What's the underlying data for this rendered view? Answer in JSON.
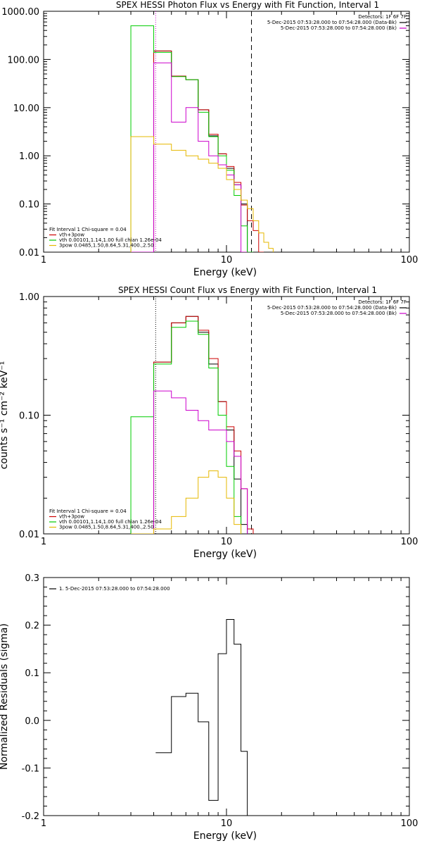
{
  "chart_data": [
    {
      "type": "line",
      "title": "SPEX HESSI Photon Flux vs Energy with Fit Function, Interval 1",
      "xlabel": "Energy (keV)",
      "ylabel": "",
      "xscale": "log",
      "yscale": "log",
      "xlim": [
        1,
        100
      ],
      "ylim": [
        0.01,
        1000
      ],
      "xticks": [
        1,
        10,
        100
      ],
      "xtick_labels": [
        "1",
        "10",
        "100"
      ],
      "yticks": [
        0.01,
        0.1,
        1,
        10,
        100,
        1000
      ],
      "ytick_labels": [
        "0.01",
        "0.10",
        "1.00",
        "10.00",
        "100.00",
        "1000.00"
      ],
      "edges": [
        3,
        4,
        5,
        6,
        7,
        8,
        9,
        10,
        11,
        12,
        13,
        14,
        15,
        16,
        17,
        18
      ],
      "vlines": [
        {
          "x": 4.1,
          "style": "dotted",
          "color": "#cc00cc"
        },
        {
          "x": 13.7,
          "style": "dashed",
          "color": "#000000"
        }
      ],
      "header_right": [
        "Detectors: 1F 6F 7F",
        "5-Dec-2015 07:53:28.000 to 07:54:28.000 (Data-Bk)",
        "5-Dec-2015 07:53:28.000 to 07:54:28.000 (Bk)"
      ],
      "header_right_colors": [
        "",
        "#000000",
        "#cc00cc"
      ],
      "legend": [
        {
          "text": "Fit Interval 1    Chi-square = 0.04",
          "color": ""
        },
        {
          "text": "vth+3pow",
          "color": "#cc0000"
        },
        {
          "text": "vth 0.00101,1.14,1.00   full chian 1.26e-04",
          "color": "#00cc00"
        },
        {
          "text": "3pow 0.0485,1.50,8.64,5.31,400.,2.50",
          "color": "#e6b800"
        }
      ],
      "series": [
        {
          "color": "#000000",
          "values": [
            0.0001,
            150,
            45,
            38,
            9,
            2.6,
            1.1,
            0.55,
            0.25,
            0.1,
            0.0001
          ]
        },
        {
          "color": "#cc0000",
          "values": [
            0.0001,
            150,
            45,
            38,
            9,
            2.8,
            1.1,
            0.6,
            0.28,
            0.095,
            0.045,
            0.028,
            0.0001
          ]
        },
        {
          "color": "#00cc00",
          "values": [
            500,
            140,
            44,
            38,
            8,
            2.5,
            1.0,
            0.5,
            0.15,
            0.035,
            0.0001
          ]
        },
        {
          "color": "#cc00cc",
          "values": [
            0.0001,
            85,
            5,
            10,
            2.0,
            1.0,
            0.65,
            0.4,
            0.25,
            0.0001
          ]
        },
        {
          "color": "#e6b800",
          "values": [
            2.5,
            1.75,
            1.3,
            1.0,
            0.85,
            0.7,
            0.55,
            0.32,
            0.2,
            0.12,
            0.08,
            0.045,
            0.025,
            0.016,
            0.012
          ]
        }
      ]
    },
    {
      "type": "line",
      "title": "SPEX HESSI Count Flux vs Energy with Fit Function, Interval 1",
      "xlabel": "Energy (keV)",
      "ylabel": "counts s⁻¹ cm⁻² keV⁻¹",
      "xscale": "log",
      "yscale": "log",
      "xlim": [
        1,
        100
      ],
      "ylim": [
        0.01,
        1
      ],
      "xticks": [
        1,
        10,
        100
      ],
      "xtick_labels": [
        "1",
        "10",
        "100"
      ],
      "yticks": [
        0.01,
        0.1,
        1
      ],
      "ytick_labels": [
        "0.01",
        "0.10",
        "1.00"
      ],
      "edges": [
        3,
        4,
        5,
        6,
        7,
        8,
        9,
        10,
        11,
        12,
        13,
        14
      ],
      "vlines": [
        {
          "x": 4.1,
          "style": "dotted",
          "color": "#000000"
        },
        {
          "x": 13.7,
          "style": "dashed",
          "color": "#000000"
        }
      ],
      "header_right": [
        "Detectors: 1F 6F 7F",
        "5-Dec-2015 07:53:28.000 to 07:54:28.000 (Data-Bk)",
        "5-Dec-2015 07:53:28.000 to 07:54:28.000 (Bk)"
      ],
      "header_right_colors": [
        "",
        "#000000",
        "#cc00cc"
      ],
      "legend": [
        {
          "text": "Fit Interval 1    Chi-square = 0.04",
          "color": ""
        },
        {
          "text": "vth+3pow",
          "color": "#cc0000"
        },
        {
          "text": "vth 0.00101,1.14,1.00   full chian 1.26e-04",
          "color": "#00cc00"
        },
        {
          "text": "3pow 0.0485,1.50,8.64,5.31,400.,2.50",
          "color": "#e6b800"
        }
      ],
      "series": [
        {
          "color": "#000000",
          "values": [
            0.0001,
            0.28,
            0.6,
            0.68,
            0.5,
            0.27,
            0.13,
            0.075,
            0.029,
            0.012,
            0.0001
          ]
        },
        {
          "color": "#cc0000",
          "values": [
            0.0001,
            0.28,
            0.6,
            0.68,
            0.52,
            0.3,
            0.13,
            0.08,
            0.05,
            0.024,
            0.011
          ]
        },
        {
          "color": "#00cc00",
          "values": [
            0.097,
            0.27,
            0.55,
            0.62,
            0.48,
            0.25,
            0.1,
            0.037,
            0.014
          ]
        },
        {
          "color": "#cc00cc",
          "values": [
            0.0001,
            0.16,
            0.14,
            0.11,
            0.09,
            0.075,
            0.075,
            0.06,
            0.045,
            0.024
          ]
        },
        {
          "color": "#e6b800",
          "values": [
            0.0001,
            0.011,
            0.014,
            0.02,
            0.03,
            0.034,
            0.03,
            0.02,
            0.012
          ]
        }
      ]
    },
    {
      "type": "line",
      "title": "",
      "xlabel": "Energy (keV)",
      "ylabel": "Normalized Residuals (sigma)",
      "xscale": "log",
      "yscale": "linear",
      "xlim": [
        1,
        100
      ],
      "ylim": [
        -0.2,
        0.3
      ],
      "xticks": [
        1,
        10,
        100
      ],
      "xtick_labels": [
        "1",
        "10",
        "100"
      ],
      "yticks": [
        -0.2,
        -0.1,
        0.0,
        0.1,
        0.2,
        0.3
      ],
      "ytick_labels": [
        "-0.2",
        "-0.1",
        "0.0",
        "0.1",
        "0.2",
        "0.3"
      ],
      "edges": [
        4.1,
        5,
        6,
        7,
        8,
        9,
        10,
        11,
        12,
        13,
        13.7
      ],
      "legend": [
        {
          "text": "1.  5-Dec-2015 07:53:28.000 to 07:54:28.000",
          "color": "#000000"
        }
      ],
      "series": [
        {
          "color": "#000000",
          "values": [
            -0.068,
            0.05,
            0.057,
            -0.003,
            -0.168,
            0.14,
            0.212,
            0.16,
            -0.065,
            -0.21
          ]
        }
      ]
    }
  ]
}
